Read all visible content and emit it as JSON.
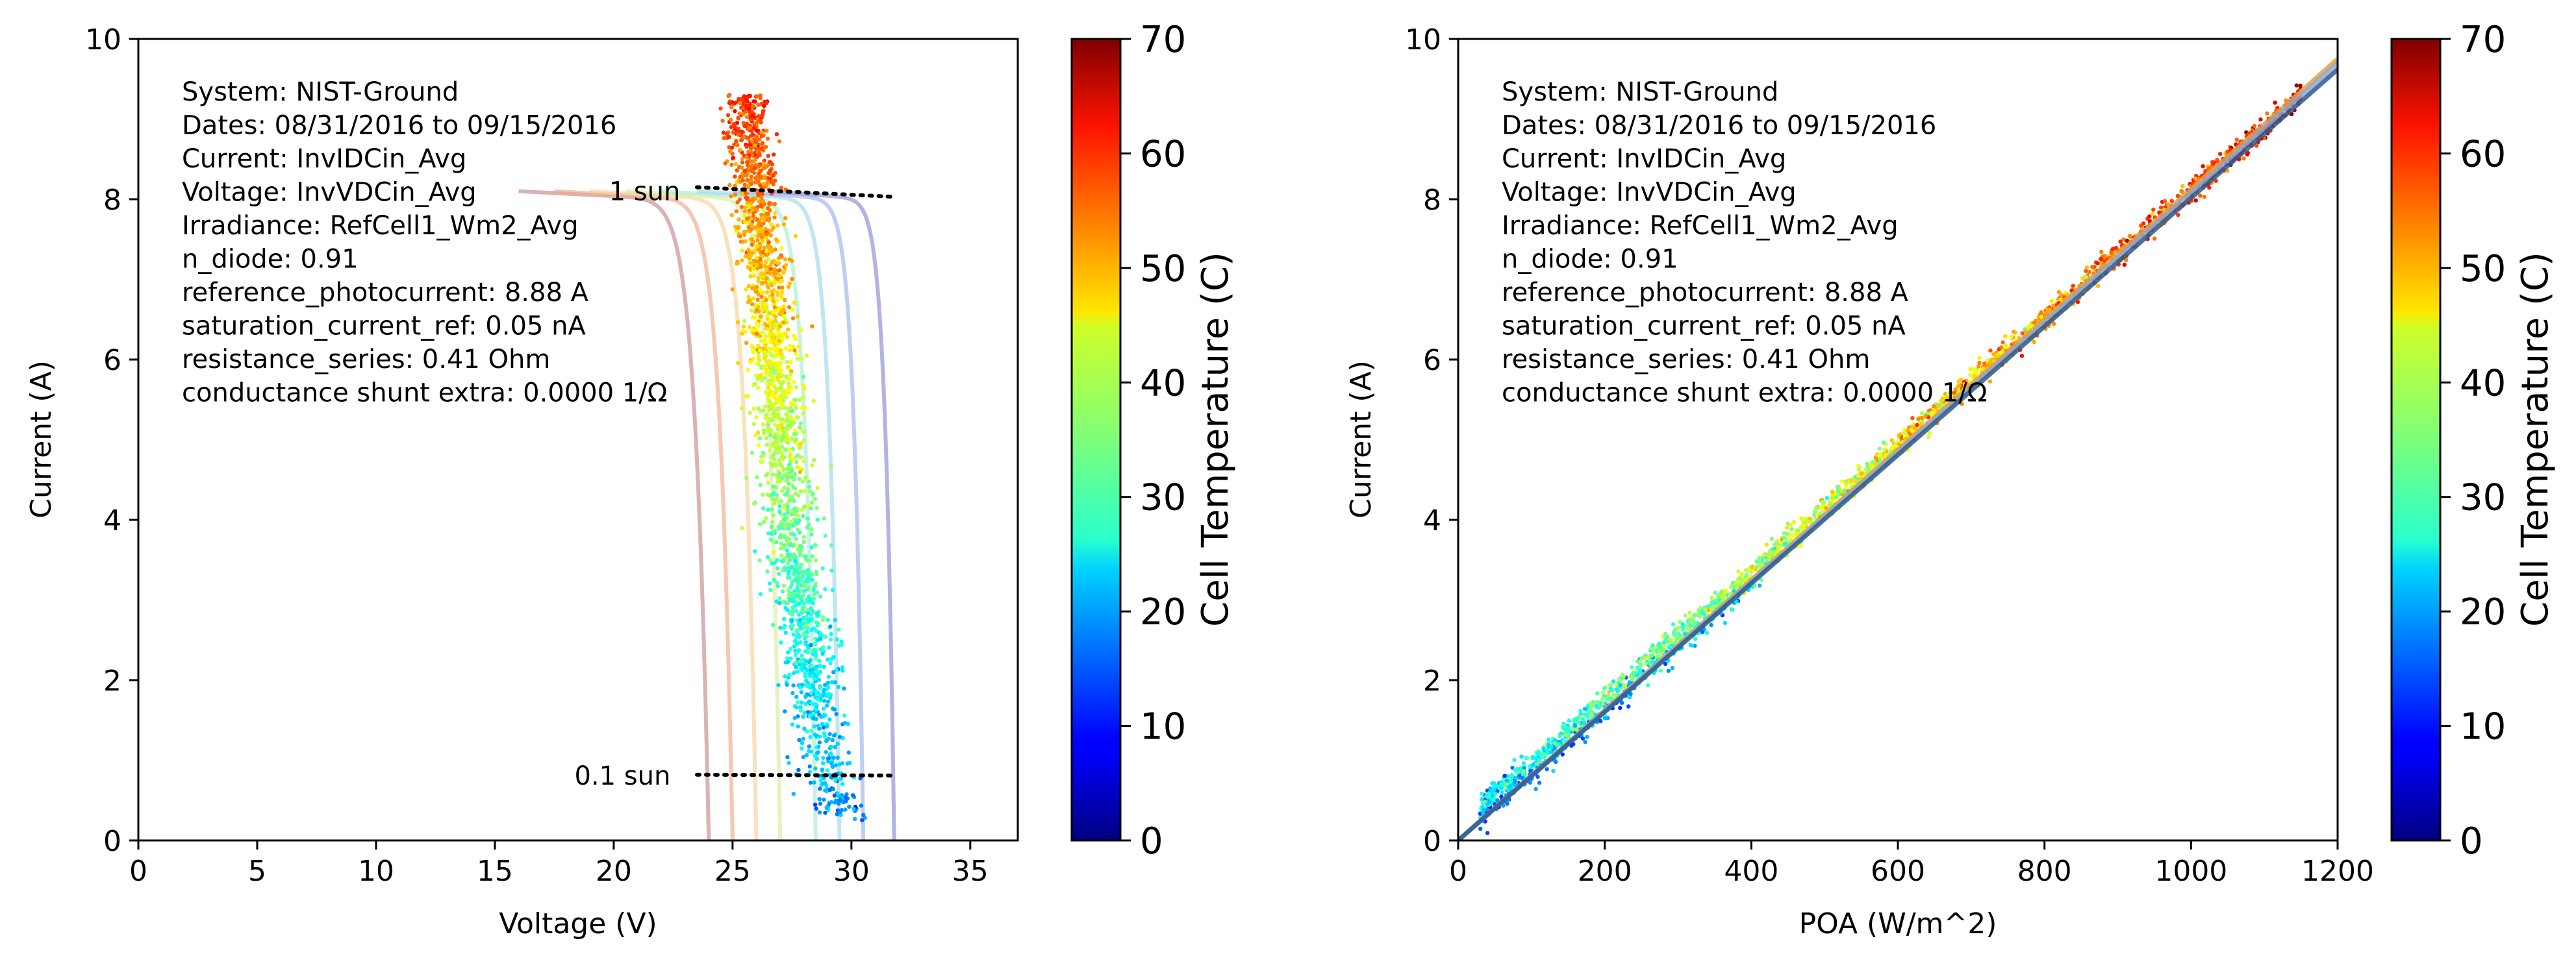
{
  "chart_data": [
    {
      "type": "scatter",
      "xlabel": "Voltage (V)",
      "ylabel": "Current (A)",
      "xlim": [
        0,
        37
      ],
      "ylim": [
        0,
        10
      ],
      "xticks": [
        0,
        5,
        10,
        15,
        20,
        25,
        30,
        35
      ],
      "yticks": [
        0,
        2,
        4,
        6,
        8,
        10
      ],
      "info_lines": [
        "System: NIST-Ground",
        "Dates: 08/31/2016 to 09/15/2016",
        "Current: InvIDCin_Avg",
        "Voltage: InvVDCin_Avg",
        "Irradiance: RefCell1_Wm2_Avg",
        "n_diode: 0.91",
        "reference_photocurrent: 8.88 A",
        "saturation_current_ref: 0.05 nA",
        "resistance_series: 0.41 Ohm",
        "conductance shunt extra: 0.0000 1/Ω"
      ],
      "annotations": [
        {
          "text": "1 sun",
          "x": 22.8,
          "y": 8.1
        },
        {
          "text": "0.1 sun",
          "x": 22.8,
          "y": 0.81
        }
      ],
      "iv_curve_voc": [
        24.0,
        25.0,
        26.0,
        27.0,
        28.5,
        29.5,
        30.5,
        31.8
      ],
      "iv_curve_vstart": [
        16.0,
        17.5,
        19.0,
        20.5,
        22.0,
        23.5,
        25.0,
        26.5
      ],
      "iv_curve_isc": 8.1,
      "iv_curve_colors": [
        "#c48a8a",
        "#f2a98a",
        "#f7d19a",
        "#d9ec9e",
        "#a8ecd2",
        "#9ed8ea",
        "#9eb2ec",
        "#8a8ad4"
      ],
      "iv_curve_opacity": 0.65,
      "sun_lines": [
        {
          "name": "1 sun",
          "points": [
            [
              23.5,
              8.15
            ],
            [
              31.8,
              8.03
            ]
          ]
        },
        {
          "name": "0.1 sun",
          "points": [
            [
              23.5,
              0.82
            ],
            [
              31.8,
              0.81
            ]
          ]
        }
      ],
      "point_cloud": {
        "i_min": 0.25,
        "i_max": 9.3,
        "v_at_low_i": 29.6,
        "v_at_high_i": 25.6,
        "temp_at_low_i": 18,
        "temp_at_high_i": 58,
        "count": 2200
      }
    },
    {
      "type": "scatter",
      "xlabel": "POA (W/m^2)",
      "ylabel": "Current (A)",
      "xlim": [
        0,
        1200
      ],
      "ylim": [
        0,
        10
      ],
      "xticks": [
        0,
        200,
        400,
        600,
        800,
        1000,
        1200
      ],
      "yticks": [
        0,
        2,
        4,
        6,
        8,
        10
      ],
      "info_lines": [
        "System: NIST-Ground",
        "Dates: 08/31/2016 to 09/15/2016",
        "Current: InvIDCin_Avg",
        "Voltage: InvVDCin_Avg",
        "Irradiance: RefCell1_Wm2_Avg",
        "n_diode: 0.91",
        "reference_photocurrent: 8.88 A",
        "saturation_current_ref: 0.05 nA",
        "resistance_series: 0.41 Ohm",
        "conductance shunt extra: 0.0000 1/Ω"
      ],
      "fit_lines": [
        {
          "color": "#e8a040",
          "points": [
            [
              0,
              0.0
            ],
            [
              1200,
              9.75
            ]
          ]
        },
        {
          "color": "#8fa8d0",
          "points": [
            [
              0,
              0.0
            ],
            [
              1200,
              9.7
            ]
          ]
        },
        {
          "color": "#2d5a8c",
          "points": [
            [
              0,
              0.0
            ],
            [
              1200,
              9.62
            ]
          ]
        }
      ],
      "point_cloud": {
        "poa_min": 30,
        "poa_max": 1150,
        "slope": 0.00808,
        "temp_at_low_poa": 25,
        "temp_at_high_poa": 62,
        "count": 2200
      }
    }
  ],
  "colorbar": {
    "label": "Cell Temperature (C)",
    "range": [
      0,
      70
    ],
    "ticks": [
      0,
      10,
      20,
      30,
      40,
      50,
      60,
      70
    ],
    "colormap": "jet"
  }
}
